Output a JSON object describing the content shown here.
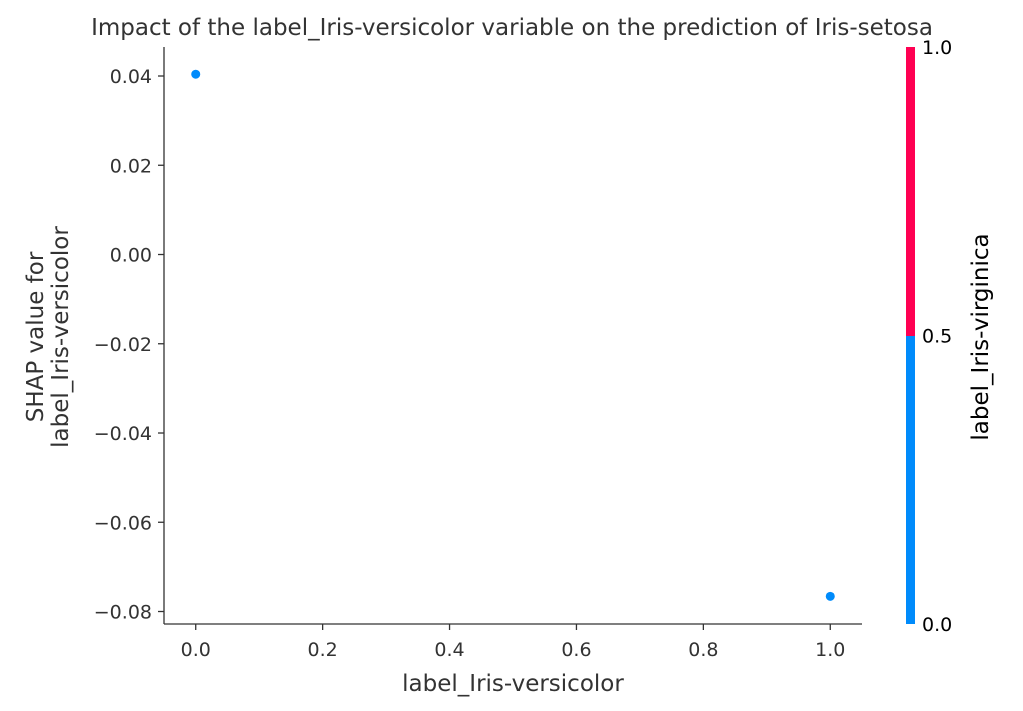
{
  "chart_data": {
    "type": "scatter",
    "title": "Impact of the label_Iris-versicolor variable on the prediction of Iris-setosa",
    "xlabel": "label_Iris-versicolor",
    "ylabel_lines": [
      "SHAP value for",
      "label_Iris-versicolor"
    ],
    "xlim": [
      -0.05,
      1.05
    ],
    "ylim": [
      -0.0828,
      0.0465
    ],
    "x_ticks": [
      0.0,
      0.2,
      0.4,
      0.6,
      0.8,
      1.0
    ],
    "x_tick_labels": [
      "0.0",
      "0.2",
      "0.4",
      "0.6",
      "0.8",
      "1.0"
    ],
    "y_ticks": [
      0.04,
      0.02,
      0.0,
      -0.02,
      -0.04,
      -0.06,
      -0.08
    ],
    "y_tick_labels": [
      "0.04",
      "0.02",
      "0.00",
      "−0.02",
      "−0.04",
      "−0.06",
      "−0.08"
    ],
    "grid": false,
    "points": [
      {
        "x": 0.0,
        "y": 0.0404,
        "color_value": 0.0
      },
      {
        "x": 1.0,
        "y": -0.0766,
        "color_value": 0.0
      }
    ],
    "colorbar": {
      "label": "label_Iris-virginica",
      "ticks": [
        0.0,
        0.5,
        1.0
      ],
      "tick_labels": [
        "0.0",
        "0.5",
        "1.0"
      ],
      "low_color": "#008bfb",
      "high_color": "#ff0052"
    }
  }
}
